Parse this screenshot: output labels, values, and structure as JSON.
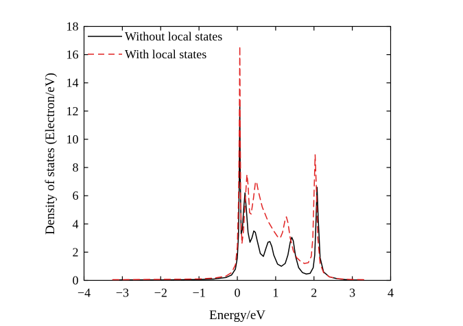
{
  "chart_data": {
    "type": "line",
    "title": "",
    "xlabel": "Energy/eV",
    "ylabel": "Density of states (Electron/eV)",
    "xlim": [
      -4,
      4
    ],
    "ylim": [
      0,
      18
    ],
    "x_ticks": [
      -4,
      -3,
      -2,
      -1,
      0,
      1,
      2,
      3,
      4
    ],
    "y_ticks": [
      0,
      2,
      4,
      6,
      8,
      10,
      12,
      14,
      16,
      18
    ],
    "x_tick_labels": [
      "−4",
      "−3",
      "−2",
      "−1",
      "0",
      "1",
      "2",
      "3",
      "4"
    ],
    "y_tick_labels": [
      "0",
      "2",
      "4",
      "6",
      "8",
      "10",
      "12",
      "14",
      "16",
      "18"
    ],
    "grid": false,
    "legend_position": "top-left",
    "series": [
      {
        "name": "Without local states",
        "color": "#000000",
        "dash": "solid",
        "points": [
          [
            -3.25,
            0.03
          ],
          [
            -3.0,
            0.03
          ],
          [
            -2.5,
            0.03
          ],
          [
            -2.0,
            0.03
          ],
          [
            -1.5,
            0.04
          ],
          [
            -1.0,
            0.06
          ],
          [
            -0.6,
            0.1
          ],
          [
            -0.3,
            0.2
          ],
          [
            -0.15,
            0.38
          ],
          [
            -0.05,
            0.8
          ],
          [
            0.0,
            1.6
          ],
          [
            0.03,
            3.2
          ],
          [
            0.05,
            7.0
          ],
          [
            0.065,
            12.6
          ],
          [
            0.075,
            7.5
          ],
          [
            0.1,
            3.3
          ],
          [
            0.13,
            3.6
          ],
          [
            0.17,
            5.2
          ],
          [
            0.2,
            6.2
          ],
          [
            0.23,
            5.2
          ],
          [
            0.28,
            3.4
          ],
          [
            0.33,
            2.7
          ],
          [
            0.38,
            3.0
          ],
          [
            0.43,
            3.5
          ],
          [
            0.47,
            3.4
          ],
          [
            0.52,
            2.8
          ],
          [
            0.6,
            1.9
          ],
          [
            0.68,
            1.7
          ],
          [
            0.75,
            2.3
          ],
          [
            0.8,
            2.7
          ],
          [
            0.85,
            2.75
          ],
          [
            0.9,
            2.4
          ],
          [
            0.95,
            1.8
          ],
          [
            1.05,
            1.15
          ],
          [
            1.15,
            1.0
          ],
          [
            1.25,
            1.2
          ],
          [
            1.32,
            1.8
          ],
          [
            1.38,
            2.7
          ],
          [
            1.42,
            3.05
          ],
          [
            1.46,
            2.8
          ],
          [
            1.52,
            1.7
          ],
          [
            1.6,
            0.9
          ],
          [
            1.7,
            0.55
          ],
          [
            1.8,
            0.45
          ],
          [
            1.9,
            0.5
          ],
          [
            1.98,
            0.9
          ],
          [
            2.02,
            1.8
          ],
          [
            2.05,
            4.0
          ],
          [
            2.08,
            6.6
          ],
          [
            2.11,
            4.4
          ],
          [
            2.16,
            1.6
          ],
          [
            2.25,
            0.6
          ],
          [
            2.4,
            0.25
          ],
          [
            2.6,
            0.12
          ],
          [
            2.8,
            0.06
          ],
          [
            3.0,
            0.03
          ],
          [
            3.3,
            0.02
          ]
        ]
      },
      {
        "name": "With local states",
        "color": "#e02020",
        "dash": "dashed",
        "points": [
          [
            -3.25,
            0.05
          ],
          [
            -3.0,
            0.05
          ],
          [
            -2.5,
            0.06
          ],
          [
            -2.0,
            0.07
          ],
          [
            -1.5,
            0.08
          ],
          [
            -1.0,
            0.1
          ],
          [
            -0.6,
            0.16
          ],
          [
            -0.3,
            0.3
          ],
          [
            -0.15,
            0.55
          ],
          [
            -0.05,
            1.1
          ],
          [
            0.0,
            2.4
          ],
          [
            0.03,
            5.5
          ],
          [
            0.05,
            10.5
          ],
          [
            0.065,
            16.6
          ],
          [
            0.075,
            11.0
          ],
          [
            0.09,
            5.0
          ],
          [
            0.12,
            2.6
          ],
          [
            0.16,
            3.5
          ],
          [
            0.21,
            5.8
          ],
          [
            0.25,
            7.5
          ],
          [
            0.28,
            6.8
          ],
          [
            0.32,
            4.8
          ],
          [
            0.36,
            4.7
          ],
          [
            0.42,
            5.8
          ],
          [
            0.47,
            6.9
          ],
          [
            0.5,
            7.0
          ],
          [
            0.55,
            6.3
          ],
          [
            0.65,
            5.2
          ],
          [
            0.8,
            4.2
          ],
          [
            0.95,
            3.5
          ],
          [
            1.05,
            3.1
          ],
          [
            1.12,
            3.0
          ],
          [
            1.18,
            3.4
          ],
          [
            1.24,
            4.2
          ],
          [
            1.28,
            4.5
          ],
          [
            1.32,
            4.1
          ],
          [
            1.38,
            3.0
          ],
          [
            1.46,
            2.1
          ],
          [
            1.55,
            1.6
          ],
          [
            1.65,
            1.35
          ],
          [
            1.75,
            1.2
          ],
          [
            1.85,
            1.25
          ],
          [
            1.93,
            1.7
          ],
          [
            1.97,
            3.0
          ],
          [
            2.0,
            6.0
          ],
          [
            2.03,
            8.9
          ],
          [
            2.06,
            6.7
          ],
          [
            2.1,
            3.0
          ],
          [
            2.16,
            1.2
          ],
          [
            2.25,
            0.55
          ],
          [
            2.4,
            0.25
          ],
          [
            2.6,
            0.13
          ],
          [
            2.8,
            0.08
          ],
          [
            3.0,
            0.06
          ],
          [
            3.3,
            0.05
          ]
        ]
      }
    ]
  }
}
